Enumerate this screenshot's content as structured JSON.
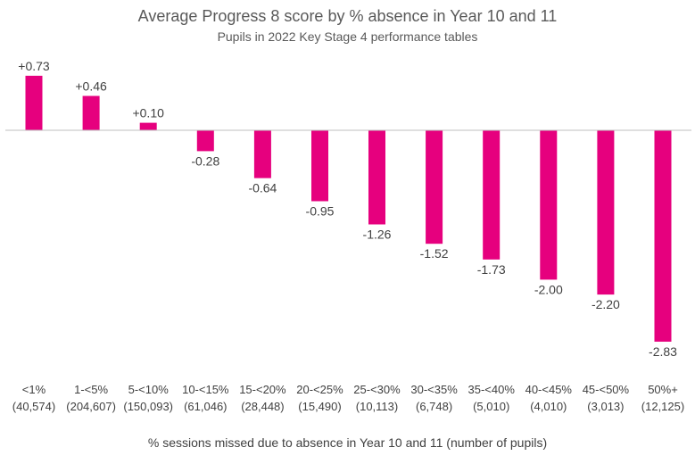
{
  "chart_data": {
    "type": "bar",
    "title": "Average Progress 8 score by % absence in Year 10 and 11",
    "subtitle": "Pupils in 2022 Key Stage 4 performance tables",
    "xlabel": "% sessions missed due to absence in Year 10 and 11 (number of pupils)",
    "ylabel": "",
    "grid": false,
    "legend": "none",
    "ylim": [
      -2.83,
      0.73
    ],
    "bar_color": "#e6007e",
    "axis_color": "#bfbfbf",
    "categories": [
      {
        "range": "<1%",
        "pupils": "(40,574)"
      },
      {
        "range": "1-<5%",
        "pupils": "(204,607)"
      },
      {
        "range": "5-<10%",
        "pupils": "(150,093)"
      },
      {
        "range": "10-<15%",
        "pupils": "(61,046)"
      },
      {
        "range": "15-<20%",
        "pupils": "(28,448)"
      },
      {
        "range": "20-<25%",
        "pupils": "(15,490)"
      },
      {
        "range": "25-<30%",
        "pupils": "(10,113)"
      },
      {
        "range": "30-<35%",
        "pupils": "(6,748)"
      },
      {
        "range": "35-<40%",
        "pupils": "(5,010)"
      },
      {
        "range": "40-<45%",
        "pupils": "(4,010)"
      },
      {
        "range": "45-<50%",
        "pupils": "(3,013)"
      },
      {
        "range": "50%+",
        "pupils": "(12,125)"
      }
    ],
    "values": [
      0.73,
      0.46,
      0.1,
      -0.28,
      -0.64,
      -0.95,
      -1.26,
      -1.52,
      -1.73,
      -2.0,
      -2.2,
      -2.83
    ],
    "value_labels": [
      "+0.73",
      "+0.46",
      "+0.10",
      "-0.28",
      "-0.64",
      "-0.95",
      "-1.26",
      "-1.52",
      "-1.73",
      "-2.00",
      "-2.20",
      "-2.83"
    ]
  }
}
